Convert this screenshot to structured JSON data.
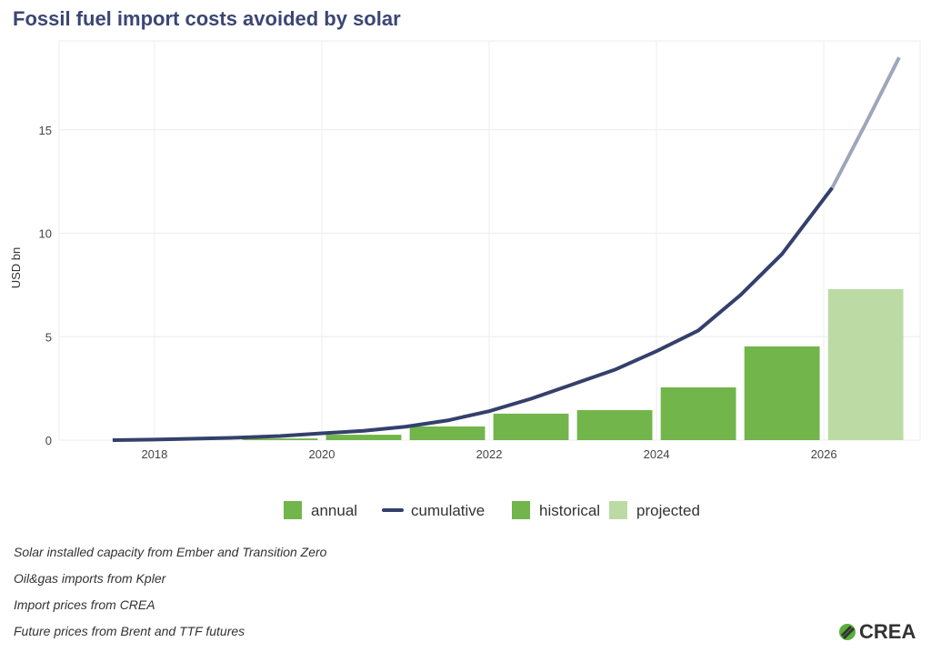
{
  "chart_data": {
    "type": "bar+line",
    "title": "Fossil fuel import costs avoided by solar",
    "xlabel": "",
    "ylabel": "USD bn",
    "xlim": [
      2016.86,
      2027.15
    ],
    "ylim": [
      0,
      19.3
    ],
    "xticks": [
      2018,
      2020,
      2022,
      2024,
      2026
    ],
    "yticks": [
      0,
      5,
      10,
      15
    ],
    "grid": true,
    "legend_position": "bottom",
    "bars": {
      "x": [
        2019.5,
        2020.5,
        2021.5,
        2022.5,
        2023.5,
        2024.5,
        2025.5,
        2026.5
      ],
      "values": [
        0.08,
        0.26,
        0.66,
        1.28,
        1.45,
        2.55,
        4.53,
        7.3
      ],
      "status": [
        "historical",
        "historical",
        "historical",
        "historical",
        "historical",
        "historical",
        "historical",
        "projected"
      ]
    },
    "cumulative": {
      "historical": {
        "x": [
          2017.5,
          2018,
          2018.5,
          2019,
          2019.5,
          2020,
          2020.5,
          2021,
          2021.5,
          2022,
          2022.5,
          2023,
          2023.5,
          2024,
          2024.5,
          2025,
          2025.5,
          2026.1
        ],
        "y": [
          0,
          0.03,
          0.07,
          0.12,
          0.2,
          0.33,
          0.45,
          0.65,
          0.95,
          1.4,
          2.0,
          2.7,
          3.4,
          4.3,
          5.3,
          7.0,
          9.0,
          12.2
        ]
      },
      "projected": {
        "x": [
          2026.1,
          2026.5,
          2026.9
        ],
        "y": [
          12.2,
          15.3,
          18.5
        ]
      }
    },
    "legend": [
      {
        "label": "annual",
        "kind": "box",
        "color": "#72b54a"
      },
      {
        "label": "cumulative",
        "kind": "line",
        "color": "#34406c"
      },
      {
        "label": "historical",
        "kind": "box",
        "color": "#72b54a"
      },
      {
        "label": "projected",
        "kind": "box",
        "color": "#bcdba4"
      }
    ],
    "colors": {
      "historical": "#72b54a",
      "projected": "#bcdba4",
      "line": "#34406c",
      "line_projected": "#9ea6bc",
      "title": "#3b4675"
    }
  },
  "notes": [
    "Solar installed capacity from Ember and Transition Zero",
    "Oil&gas imports from Kpler",
    "Import prices from CREA",
    "Future prices from Brent and TTF futures"
  ],
  "logo": {
    "text": "CREA"
  }
}
